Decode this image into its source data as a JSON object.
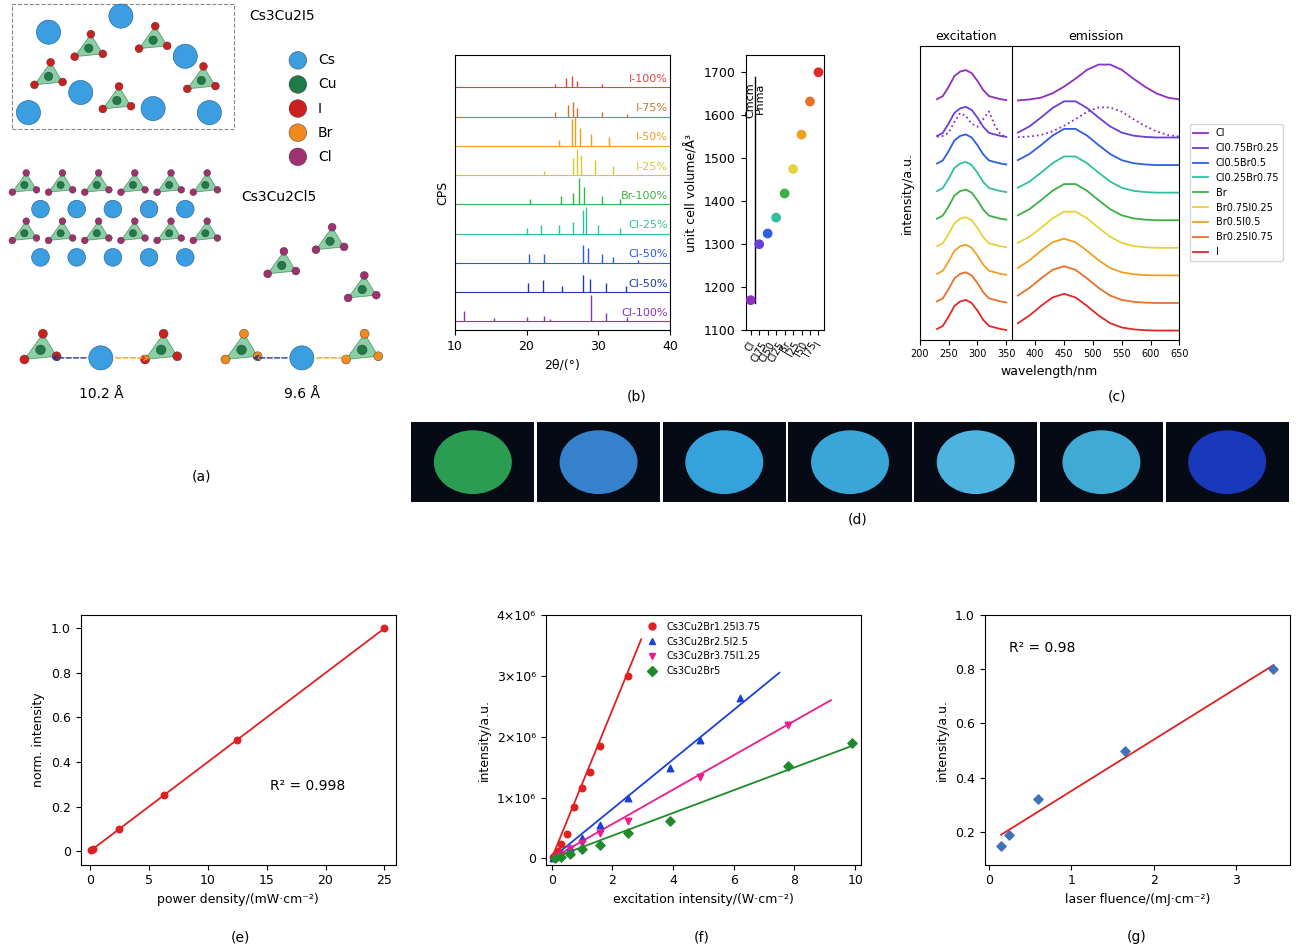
{
  "panel_labels": [
    "(a)",
    "(b)",
    "(c)",
    "(d)",
    "(e)",
    "(f)",
    "(g)"
  ],
  "structure": {
    "titles": [
      "Cs3Cu2I5",
      "Cs3Cu2Cl5"
    ],
    "legend": [
      {
        "name": "Cs",
        "color": "#3a9ee0"
      },
      {
        "name": "Cu",
        "color": "#1f7a45"
      },
      {
        "name": "I",
        "color": "#cc2020"
      },
      {
        "name": "Br",
        "color": "#f08a1c"
      },
      {
        "name": "Cl",
        "color": "#a0306e"
      }
    ],
    "distances": [
      "10.2 Å",
      "9.6 Å"
    ]
  },
  "photos": {
    "colors": [
      "#2fae5a",
      "#3b8fe0",
      "#3ab4f2",
      "#40b8ee",
      "#54c8f6",
      "#46bde9",
      "#1b3fd0"
    ]
  },
  "chart_data": [
    {
      "type": "stick",
      "x_label": "2θ/(°)",
      "y_label": "CPS",
      "xlim": [
        10,
        40
      ],
      "xticks": [
        10,
        20,
        30,
        40
      ],
      "ylim": [
        0,
        9.4
      ],
      "tick_labels": "x",
      "series": [
        {
          "name": "Cl-100%",
          "color": "#8e2fc0",
          "baseline": 0.3,
          "x": [
            11.3,
            15.5,
            20.0,
            22.5,
            23.2,
            29.0,
            31.0,
            34.0
          ],
          "values": [
            0.65,
            0.42,
            0.45,
            0.48,
            0.4,
            1.2,
            0.6,
            0.45
          ]
        },
        {
          "name": "Cl-50%",
          "color": "#1f3aa0",
          "baseline": 1.3,
          "x": [
            20.2,
            22.3,
            25.0,
            27.9,
            28.9,
            31.0,
            33.8
          ],
          "values": [
            1.6,
            1.7,
            1.5,
            1.9,
            1.75,
            1.6,
            1.5
          ]
        },
        {
          "name": "Cl-50%",
          "color": "#2a5ae0",
          "baseline": 2.3,
          "x": [
            20.3,
            22.5,
            27.8,
            28.5,
            30.5,
            32.0,
            35.5
          ],
          "values": [
            2.6,
            2.6,
            2.9,
            2.8,
            2.6,
            2.5,
            2.4
          ]
        },
        {
          "name": "Cl-25%",
          "color": "#2fc0a0",
          "baseline": 3.3,
          "x": [
            20.0,
            22.0,
            24.5,
            26.5,
            27.8,
            28.3,
            30.0,
            33.0
          ],
          "values": [
            3.5,
            3.6,
            3.6,
            3.7,
            4.1,
            4.2,
            3.6,
            3.5
          ]
        },
        {
          "name": "Br-100%",
          "color": "#3cb043",
          "baseline": 4.3,
          "x": [
            20.5,
            24.8,
            26.5,
            27.3,
            28.0,
            30.5,
            33.0
          ],
          "values": [
            4.5,
            4.6,
            4.7,
            5.2,
            4.9,
            4.6,
            4.5
          ]
        },
        {
          "name": "I-25%",
          "color": "#d8c830",
          "baseline": 5.3,
          "x": [
            22.5,
            26.5,
            27.0,
            27.6,
            29.5,
            32.0
          ],
          "values": [
            5.45,
            5.9,
            6.2,
            6.0,
            5.8,
            5.6
          ]
        },
        {
          "name": "I-50%",
          "color": "#e8a020",
          "baseline": 6.3,
          "x": [
            24.5,
            26.3,
            26.8,
            27.5,
            29.0,
            31.5
          ],
          "values": [
            6.5,
            7.2,
            7.3,
            6.9,
            6.7,
            6.6
          ]
        },
        {
          "name": "I-75%",
          "color": "#c8772a",
          "baseline": 7.3,
          "x": [
            24.0,
            25.8,
            26.5,
            27.0,
            30.5,
            34.0
          ],
          "values": [
            7.45,
            7.7,
            7.8,
            7.6,
            7.45,
            7.4
          ]
        },
        {
          "name": "I-100%",
          "color": "#e8403c",
          "baseline": 8.3,
          "x": [
            24.0,
            25.5,
            26.3,
            27.0,
            30.5
          ],
          "values": [
            8.4,
            8.6,
            8.7,
            8.5,
            8.4
          ]
        }
      ]
    },
    {
      "type": "scatter",
      "y_label": "unit cell volume/Å³",
      "marker": "circle",
      "categories": [
        "Cl",
        "Cl75",
        "Cl50",
        "Cl25",
        "Br",
        "I25",
        "I50",
        "I75",
        "I"
      ],
      "values": [
        1170,
        1300,
        1325,
        1362,
        1418,
        1475,
        1555,
        1632,
        1700
      ],
      "colors": [
        "#8e2fc0",
        "#6a3fd6",
        "#2f5fe0",
        "#2fc0a0",
        "#3cb043",
        "#e6d23a",
        "#f0a020",
        "#e8702a",
        "#e02828"
      ],
      "ylim": [
        1100,
        1740
      ],
      "yticks": [
        1100,
        1200,
        1300,
        1400,
        1500,
        1600,
        1700
      ],
      "annotations": [
        "Cmcm",
        "Pnma"
      ]
    },
    {
      "type": "line",
      "x_label": "wavelength/nm",
      "y_label": "intensity/a.u.",
      "annotations": [
        "excitation",
        "emission"
      ],
      "xlim": [
        200,
        650
      ],
      "xticks": [
        200,
        250,
        300,
        350,
        400,
        450,
        500,
        550,
        600,
        650
      ],
      "ylim": [
        0,
        9.6
      ],
      "tick_labels": "x",
      "legend": "right",
      "x": [
        230,
        240,
        250,
        260,
        270,
        280,
        290,
        300,
        310,
        320,
        330,
        340,
        350,
        360,
        370,
        390,
        410,
        430,
        450,
        470,
        490,
        510,
        530,
        550,
        570,
        590,
        610,
        630,
        650
      ],
      "series": [
        {
          "name": "Cl",
          "color": "#8e2fc0",
          "values": [
            7.85,
            7.95,
            8.25,
            8.6,
            8.75,
            8.8,
            8.7,
            8.45,
            8.15,
            7.95,
            7.9,
            7.85,
            7.82,
            null,
            7.81,
            7.84,
            7.9,
            8.04,
            8.26,
            8.52,
            8.81,
            8.98,
            8.98,
            8.81,
            8.52,
            8.26,
            8.04,
            7.9,
            7.84
          ]
        },
        {
          "name": "Cl0.75Br0.25",
          "color": "#6a3fd6",
          "values": [
            6.65,
            6.75,
            7.05,
            7.4,
            7.55,
            7.6,
            7.5,
            7.25,
            6.95,
            6.75,
            6.7,
            6.65,
            6.62,
            null,
            6.76,
            6.96,
            7.25,
            7.56,
            7.78,
            7.78,
            7.56,
            7.25,
            6.96,
            6.76,
            6.66,
            6.62,
            6.6,
            6.6,
            6.6
          ]
        },
        {
          "name": "Cl0.5Br0.5",
          "color": "#2f5fe0",
          "values": [
            5.75,
            5.85,
            6.15,
            6.5,
            6.65,
            6.7,
            6.6,
            6.35,
            6.05,
            5.85,
            5.8,
            5.75,
            5.72,
            null,
            5.86,
            6.06,
            6.35,
            6.66,
            6.88,
            6.88,
            6.66,
            6.35,
            6.06,
            5.86,
            5.76,
            5.72,
            5.7,
            5.7,
            5.7
          ]
        },
        {
          "name": "Cl0.25Br0.75",
          "color": "#2fc0a0",
          "values": [
            4.85,
            4.95,
            5.25,
            5.6,
            5.75,
            5.8,
            5.7,
            5.45,
            5.15,
            4.95,
            4.9,
            4.85,
            4.82,
            null,
            4.96,
            5.16,
            5.45,
            5.76,
            5.98,
            5.98,
            5.76,
            5.45,
            5.16,
            4.96,
            4.86,
            4.82,
            4.8,
            4.8,
            4.8
          ]
        },
        {
          "name": "Br",
          "color": "#3cb043",
          "values": [
            3.95,
            4.05,
            4.35,
            4.7,
            4.85,
            4.9,
            4.8,
            4.55,
            4.25,
            4.05,
            4.0,
            3.95,
            3.92,
            null,
            4.06,
            4.26,
            4.55,
            4.86,
            5.08,
            5.08,
            4.86,
            4.55,
            4.26,
            4.06,
            3.96,
            3.92,
            3.9,
            3.9,
            3.9
          ]
        },
        {
          "name": "Br0.75I0.25",
          "color": "#e6d23a",
          "values": [
            3.05,
            3.15,
            3.45,
            3.8,
            3.95,
            4.0,
            3.9,
            3.65,
            3.35,
            3.15,
            3.1,
            3.05,
            3.02,
            null,
            3.16,
            3.36,
            3.65,
            3.96,
            4.18,
            4.18,
            3.96,
            3.65,
            3.36,
            3.16,
            3.06,
            3.02,
            3.0,
            3.0,
            3.0
          ]
        },
        {
          "name": "Br0.5I0.5",
          "color": "#f0a020",
          "values": [
            2.15,
            2.25,
            2.55,
            2.9,
            3.05,
            3.1,
            3.0,
            2.75,
            2.45,
            2.25,
            2.2,
            2.15,
            2.12,
            null,
            2.34,
            2.59,
            2.9,
            3.18,
            3.3,
            3.18,
            2.9,
            2.59,
            2.34,
            2.2,
            2.14,
            2.11,
            2.1,
            2.1,
            2.1
          ]
        },
        {
          "name": "Br0.25I0.75",
          "color": "#e8702a",
          "values": [
            1.25,
            1.35,
            1.65,
            2.0,
            2.15,
            2.2,
            2.1,
            1.85,
            1.55,
            1.35,
            1.3,
            1.25,
            1.22,
            null,
            1.44,
            1.69,
            2.0,
            2.28,
            2.4,
            2.28,
            2.0,
            1.69,
            1.44,
            1.3,
            1.24,
            1.21,
            1.2,
            1.2,
            1.2
          ]
        },
        {
          "name": "I",
          "color": "#e02828",
          "values": [
            0.35,
            0.45,
            0.75,
            1.1,
            1.25,
            1.3,
            1.2,
            0.95,
            0.65,
            0.45,
            0.4,
            0.35,
            0.32,
            null,
            0.54,
            0.79,
            1.1,
            1.38,
            1.5,
            1.38,
            1.1,
            0.79,
            0.54,
            0.4,
            0.34,
            0.31,
            0.3,
            0.3,
            0.3
          ]
        },
        {
          "color": "#8e2fc0",
          "line_style": "dotted",
          "values": [
            6.62,
            6.65,
            6.75,
            7.1,
            7.4,
            7.3,
            7.05,
            6.95,
            7.2,
            7.45,
            7.0,
            6.7,
            6.62,
            null,
            6.61,
            6.63,
            6.68,
            6.8,
            6.98,
            7.2,
            7.44,
            7.58,
            7.58,
            7.44,
            7.2,
            6.98,
            6.8,
            6.68,
            6.63
          ]
        }
      ]
    },
    {
      "type": "scatter",
      "x_label": "power density/(mW·cm⁻²)",
      "y_label": "norm. intensity",
      "annotations": [
        "R² = 0.998"
      ],
      "xlim": [
        -0.8,
        26
      ],
      "xticks": [
        0,
        5,
        10,
        15,
        20,
        25
      ],
      "ylim": [
        -0.06,
        1.06
      ],
      "yticks": [
        0,
        0.2,
        0.4,
        0.6,
        0.8,
        1.0
      ],
      "series": [
        {
          "color": "#e02020",
          "marker": "circle",
          "x": [
            0.1,
            0.25,
            2.5,
            6.25,
            12.5,
            25
          ],
          "values": [
            0.004,
            0.01,
            0.1,
            0.25,
            0.5,
            1.0
          ]
        },
        {
          "type": "line",
          "color": "#e02020",
          "line_style": "solid",
          "x": [
            0,
            25
          ],
          "values": [
            0,
            1.0
          ]
        }
      ]
    },
    {
      "type": "scatter",
      "x_label": "excitation intensity/(W·cm⁻²)",
      "y_label": "intensity/a.u.",
      "legend": "upper center",
      "xlim": [
        -0.2,
        10.2
      ],
      "xticks": [
        0,
        2,
        4,
        6,
        8,
        10
      ],
      "ylim": [
        -100000,
        4000000
      ],
      "yticks": [
        0,
        {
          "value": 1000000,
          "label": "1×10⁶"
        },
        {
          "value": 2000000,
          "label": "2×10⁶"
        },
        {
          "value": 3000000,
          "label": "3×10⁶"
        },
        {
          "value": 4000000,
          "label": "4×10⁶"
        }
      ],
      "series": [
        {
          "name": "Cs3Cu2Br1.25I3.75",
          "color": "#e02020",
          "marker": "circle",
          "x": [
            0.05,
            0.1,
            0.2,
            0.3,
            0.5,
            0.75,
            1.0,
            1.25,
            1.6,
            2.5
          ],
          "values": [
            20000,
            50000,
            120000,
            230000,
            400000,
            850000,
            1150000,
            1420000,
            1850000,
            3000000
          ]
        },
        {
          "name": "Cs3Cu2Br2.5I2.5",
          "color": "#1c3fd8",
          "marker": "triangle_up",
          "x": [
            0.05,
            0.1,
            0.3,
            0.6,
            1.0,
            1.6,
            2.5,
            3.9,
            4.9,
            6.2
          ],
          "values": [
            10000,
            30000,
            80000,
            170000,
            330000,
            550000,
            1000000,
            1480000,
            1950000,
            2630000
          ]
        },
        {
          "name": "Cs3Cu2Br3.75I1.25",
          "color": "#ec1c8c",
          "marker": "triangle_down",
          "x": [
            0.1,
            0.3,
            0.6,
            1.0,
            1.6,
            2.5,
            4.9,
            7.8
          ],
          "values": [
            20000,
            60000,
            150000,
            250000,
            420000,
            620000,
            1330000,
            2200000
          ]
        },
        {
          "name": "Cs3Cu2Br5",
          "color": "#1f8a2a",
          "marker": "diamond",
          "x": [
            0.1,
            0.3,
            0.6,
            1.0,
            1.6,
            2.5,
            3.9,
            7.8,
            9.9
          ],
          "values": [
            10000,
            30000,
            70000,
            150000,
            220000,
            420000,
            620000,
            1520000,
            1900000
          ]
        },
        {
          "type": "line",
          "color": "#e02020",
          "line_style": "solid",
          "x": [
            0,
            2.95
          ],
          "values": [
            0,
            3600000
          ]
        },
        {
          "type": "line",
          "color": "#1c3fd8",
          "line_style": "solid",
          "x": [
            0,
            7.5
          ],
          "values": [
            0,
            3050000
          ]
        },
        {
          "type": "line",
          "color": "#ec1c8c",
          "line_style": "solid",
          "x": [
            0,
            9.2
          ],
          "values": [
            0,
            2600000
          ]
        },
        {
          "type": "line",
          "color": "#1f8a2a",
          "line_style": "solid",
          "x": [
            0,
            9.9
          ],
          "values": [
            0,
            1850000
          ]
        }
      ]
    },
    {
      "type": "scatter",
      "x_label": "laser fluence/(mJ·cm⁻²)",
      "y_label": "intensity/a.u.",
      "annotations": [
        "R² = 0.98"
      ],
      "xlim": [
        -0.05,
        3.65
      ],
      "xticks": [
        0,
        1,
        2,
        3
      ],
      "ylim": [
        0.08,
        1.0
      ],
      "yticks": [
        0.2,
        0.4,
        0.6,
        0.8,
        1.0
      ],
      "series": [
        {
          "color": "#3f72b8",
          "marker": "diamond",
          "x": [
            0.15,
            0.25,
            0.6,
            1.65,
            3.45
          ],
          "values": [
            0.15,
            0.19,
            0.32,
            0.5,
            0.8
          ]
        },
        {
          "type": "line",
          "color": "#e02020",
          "line_style": "solid",
          "x": [
            0.15,
            3.45
          ],
          "values": [
            0.19,
            0.815
          ]
        }
      ]
    }
  ]
}
